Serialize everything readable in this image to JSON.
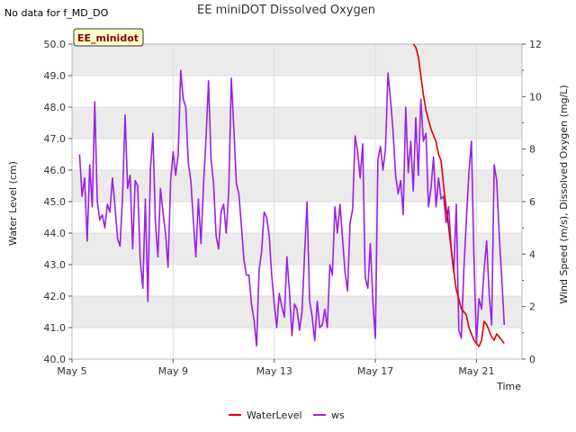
{
  "chart_data": {
    "type": "line",
    "title": "EE miniDOT Dissolved Oxygen",
    "no_data_note": "No data for f_MD_DO",
    "badge": "EE_minidot",
    "xlabel": "Time",
    "ylabel_left": "Water Level (cm)",
    "ylabel_right": "Wind Speed (m/s), Dissolved Oxygen (mg/L)",
    "xlim": [
      0,
      17.8
    ],
    "ylim_left": [
      40.0,
      50.0
    ],
    "ylim_right": [
      0,
      12
    ],
    "x_ticks": [
      {
        "day": 0,
        "label": "May 5"
      },
      {
        "day": 4,
        "label": "May 9"
      },
      {
        "day": 8,
        "label": "May 13"
      },
      {
        "day": 12,
        "label": "May 17"
      },
      {
        "day": 16,
        "label": "May 21"
      }
    ],
    "left_ticks": [
      "40.0",
      "41.0",
      "42.0",
      "43.0",
      "44.0",
      "45.0",
      "46.0",
      "47.0",
      "48.0",
      "49.0",
      "50.0"
    ],
    "right_ticks": [
      "0",
      "2",
      "4",
      "6",
      "8",
      "10",
      "12"
    ],
    "grid": true,
    "legend_position": "bottom-center",
    "colors": {
      "WaterLevel": "#dd0000",
      "ws": "#9b1fe8",
      "band": "#ebebeb"
    },
    "series": [
      {
        "name": "WaterLevel",
        "axis": "left",
        "x": [
          13.5,
          13.6,
          13.7,
          13.8,
          13.9,
          14.0,
          14.1,
          14.2,
          14.3,
          14.4,
          14.5,
          14.6,
          14.7,
          14.8,
          14.9,
          15.0,
          15.1,
          15.2,
          15.3,
          15.4,
          15.5,
          15.6,
          15.7,
          15.8,
          15.9,
          16.0,
          16.1,
          16.2,
          16.3,
          16.4,
          16.5,
          16.6,
          16.7,
          16.8,
          16.9,
          17.0,
          17.1
        ],
        "y": [
          50.0,
          49.9,
          49.6,
          49.0,
          48.4,
          47.9,
          47.6,
          47.3,
          47.1,
          46.9,
          46.5,
          46.3,
          45.5,
          44.8,
          44.2,
          43.5,
          42.8,
          42.2,
          41.9,
          41.6,
          41.5,
          41.4,
          41.0,
          40.8,
          40.6,
          40.5,
          40.4,
          40.6,
          41.2,
          41.1,
          40.9,
          40.7,
          40.6,
          40.8,
          40.7,
          40.6,
          40.5
        ]
      },
      {
        "name": "ws",
        "axis": "right",
        "x": [
          0.3,
          0.4,
          0.5,
          0.6,
          0.7,
          0.8,
          0.9,
          1.0,
          1.1,
          1.2,
          1.3,
          1.4,
          1.5,
          1.6,
          1.7,
          1.8,
          1.9,
          2.0,
          2.1,
          2.2,
          2.3,
          2.4,
          2.5,
          2.6,
          2.7,
          2.8,
          2.9,
          3.0,
          3.1,
          3.2,
          3.3,
          3.4,
          3.5,
          3.6,
          3.7,
          3.8,
          3.9,
          4.0,
          4.1,
          4.2,
          4.3,
          4.4,
          4.5,
          4.6,
          4.7,
          4.8,
          4.9,
          5.0,
          5.1,
          5.2,
          5.3,
          5.4,
          5.5,
          5.6,
          5.7,
          5.8,
          5.9,
          6.0,
          6.1,
          6.2,
          6.3,
          6.4,
          6.5,
          6.6,
          6.7,
          6.8,
          6.9,
          7.0,
          7.1,
          7.2,
          7.3,
          7.4,
          7.5,
          7.6,
          7.7,
          7.8,
          7.9,
          8.0,
          8.1,
          8.2,
          8.3,
          8.4,
          8.5,
          8.6,
          8.7,
          8.8,
          8.9,
          9.0,
          9.1,
          9.2,
          9.3,
          9.4,
          9.5,
          9.6,
          9.7,
          9.8,
          9.9,
          10.0,
          10.1,
          10.2,
          10.3,
          10.4,
          10.5,
          10.6,
          10.7,
          10.8,
          10.9,
          11.0,
          11.1,
          11.2,
          11.3,
          11.4,
          11.5,
          11.6,
          11.7,
          11.8,
          11.9,
          12.0,
          12.1,
          12.2,
          12.3,
          12.4,
          12.5,
          12.6,
          12.7,
          12.8,
          12.9,
          13.0,
          13.1,
          13.2,
          13.3,
          13.4,
          13.5,
          13.6,
          13.7,
          13.8,
          13.9,
          14.0,
          14.1,
          14.2,
          14.3,
          14.4,
          14.5,
          14.6,
          14.7,
          14.8,
          14.9,
          15.0,
          15.1,
          15.2,
          15.3,
          15.4,
          15.5,
          15.6,
          15.7,
          15.8,
          15.9,
          16.0,
          16.1,
          16.2,
          16.3,
          16.4,
          16.5,
          16.6,
          16.7,
          16.8,
          16.9,
          17.0,
          17.1
        ],
        "y": [
          7.8,
          6.2,
          6.9,
          4.5,
          7.4,
          5.8,
          9.8,
          6.0,
          5.3,
          5.5,
          5.0,
          5.9,
          5.6,
          6.9,
          5.8,
          4.6,
          4.3,
          6.2,
          9.3,
          6.5,
          7.0,
          4.2,
          6.8,
          6.6,
          3.8,
          2.7,
          6.1,
          2.2,
          7.2,
          8.6,
          5.2,
          3.9,
          6.5,
          5.6,
          4.8,
          3.5,
          6.8,
          7.9,
          7.0,
          7.8,
          11.0,
          9.9,
          9.6,
          7.5,
          6.8,
          5.3,
          3.9,
          6.1,
          4.4,
          6.6,
          8.4,
          10.6,
          7.6,
          6.7,
          4.7,
          4.2,
          5.6,
          5.9,
          4.8,
          6.4,
          10.7,
          8.8,
          6.7,
          6.3,
          5.1,
          3.8,
          3.2,
          3.2,
          2.1,
          1.5,
          0.5,
          3.4,
          4.1,
          5.6,
          5.4,
          4.7,
          3.2,
          2.1,
          1.2,
          2.5,
          2.0,
          1.6,
          3.9,
          2.6,
          0.9,
          2.1,
          1.9,
          1.1,
          1.8,
          4.0,
          6.0,
          2.2,
          1.6,
          0.7,
          2.2,
          1.2,
          1.3,
          1.9,
          1.2,
          3.6,
          3.2,
          5.8,
          4.8,
          5.9,
          4.6,
          3.3,
          2.6,
          5.2,
          5.7,
          8.5,
          7.9,
          6.9,
          8.2,
          3.1,
          2.7,
          4.4,
          2.2,
          0.8,
          7.6,
          8.1,
          7.2,
          8.0,
          10.9,
          9.9,
          8.7,
          7.0,
          6.3,
          6.8,
          5.5,
          9.6,
          7.1,
          8.3,
          6.4,
          9.2,
          7.0,
          9.9,
          8.3,
          8.6,
          5.8,
          6.5,
          7.7,
          5.8,
          6.9,
          6.1,
          6.2,
          5.2,
          5.8,
          4.2,
          3.3,
          5.9,
          1.1,
          0.8,
          3.4,
          5.3,
          7.1,
          8.3,
          3.9,
          0.6,
          2.3,
          1.9,
          3.4,
          4.5,
          2.5,
          1.3,
          7.4,
          6.8,
          4.7,
          3.1,
          1.3
        ]
      }
    ]
  }
}
